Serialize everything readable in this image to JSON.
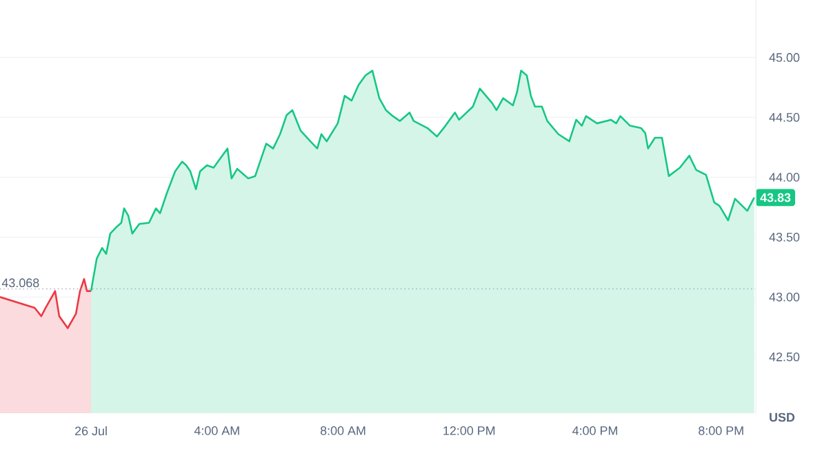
{
  "chart_data": {
    "type": "area",
    "ylabel": "USD",
    "grid": "y",
    "xlim": [
      -2.89,
      21.1
    ],
    "ylim": [
      42.03,
      45.48
    ],
    "xticks": [
      {
        "value": 0,
        "label": "26 Jul"
      },
      {
        "value": 4,
        "label": "4:00 AM"
      },
      {
        "value": 8,
        "label": "8:00 AM"
      },
      {
        "value": 12,
        "label": "12:00 PM"
      },
      {
        "value": 16,
        "label": "4:00 PM"
      },
      {
        "value": 20,
        "label": "8:00 PM"
      }
    ],
    "yticks": [
      {
        "value": 42.5,
        "label": "42.50"
      },
      {
        "value": 43,
        "label": "43.00"
      },
      {
        "value": 43.5,
        "label": "43.50"
      },
      {
        "value": 44,
        "label": "44.00"
      },
      {
        "value": 44.5,
        "label": "44.50"
      },
      {
        "value": 45,
        "label": "45.00"
      }
    ],
    "ref_lines": [
      {
        "axis": "y",
        "value": 43.068,
        "label": "43.068",
        "color": "#a6b0c3",
        "line_style": "dotted"
      }
    ],
    "annotations": [
      {
        "text": "43.83",
        "x": 21.05,
        "y": 43.83
      }
    ],
    "series": [
      {
        "color": "#ea3943",
        "x": [
          -2.89,
          -1.79,
          -1.58,
          -1.44,
          -1.14,
          -1.01,
          -0.74,
          -0.48,
          -0.35,
          -0.22,
          -0.13,
          0
        ],
        "values": [
          43.0,
          42.91,
          42.84,
          42.91,
          43.05,
          42.84,
          42.74,
          42.86,
          43.05,
          43.15,
          43.05,
          43.05
        ]
      },
      {
        "color": "#16c784",
        "x": [
          0,
          0.18,
          0.35,
          0.48,
          0.61,
          0.83,
          0.96,
          1.05,
          1.18,
          1.31,
          1.53,
          1.84,
          2.06,
          2.19,
          2.41,
          2.67,
          2.89,
          3.02,
          3.15,
          3.33,
          3.46,
          3.68,
          3.89,
          4.11,
          4.33,
          4.46,
          4.64,
          4.99,
          5.21,
          5.56,
          5.78,
          6.0,
          6.21,
          6.39,
          6.65,
          6.96,
          7.18,
          7.31,
          7.48,
          7.83,
          8.05,
          8.27,
          8.49,
          8.71,
          8.93,
          9.15,
          9.36,
          9.58,
          9.8,
          10.11,
          10.24,
          10.68,
          10.98,
          11.25,
          11.55,
          11.68,
          12.12,
          12.34,
          12.73,
          12.87,
          13.08,
          13.39,
          13.52,
          13.65,
          13.83,
          13.96,
          14.09,
          14.31,
          14.48,
          14.83,
          15.18,
          15.4,
          15.58,
          15.71,
          16.06,
          16.5,
          16.67,
          16.8,
          17.11,
          17.46,
          17.59,
          17.68,
          17.9,
          18.12,
          18.34,
          18.69,
          18.99,
          19.21,
          19.52,
          19.78,
          19.95,
          20.22,
          20.44,
          20.83,
          21.05
        ],
        "values": [
          43.05,
          43.32,
          43.41,
          43.36,
          43.53,
          43.59,
          43.62,
          43.74,
          43.68,
          43.53,
          43.61,
          43.62,
          43.74,
          43.7,
          43.87,
          44.05,
          44.13,
          44.1,
          44.05,
          43.9,
          44.05,
          44.1,
          44.08,
          44.16,
          44.24,
          43.99,
          44.07,
          43.99,
          44.01,
          44.28,
          44.24,
          44.36,
          44.52,
          44.56,
          44.39,
          44.3,
          44.24,
          44.36,
          44.3,
          44.45,
          44.68,
          44.64,
          44.77,
          44.85,
          44.89,
          44.66,
          44.56,
          44.51,
          44.47,
          44.54,
          44.47,
          44.41,
          44.34,
          44.43,
          44.54,
          44.48,
          44.59,
          44.74,
          44.62,
          44.56,
          44.66,
          44.6,
          44.71,
          44.89,
          44.85,
          44.68,
          44.59,
          44.59,
          44.47,
          44.36,
          44.3,
          44.48,
          44.43,
          44.51,
          44.45,
          44.48,
          44.45,
          44.51,
          44.43,
          44.41,
          44.37,
          44.24,
          44.33,
          44.33,
          44.01,
          44.08,
          44.18,
          44.06,
          44.02,
          43.79,
          43.76,
          43.64,
          43.82,
          43.72,
          43.83
        ]
      }
    ]
  }
}
